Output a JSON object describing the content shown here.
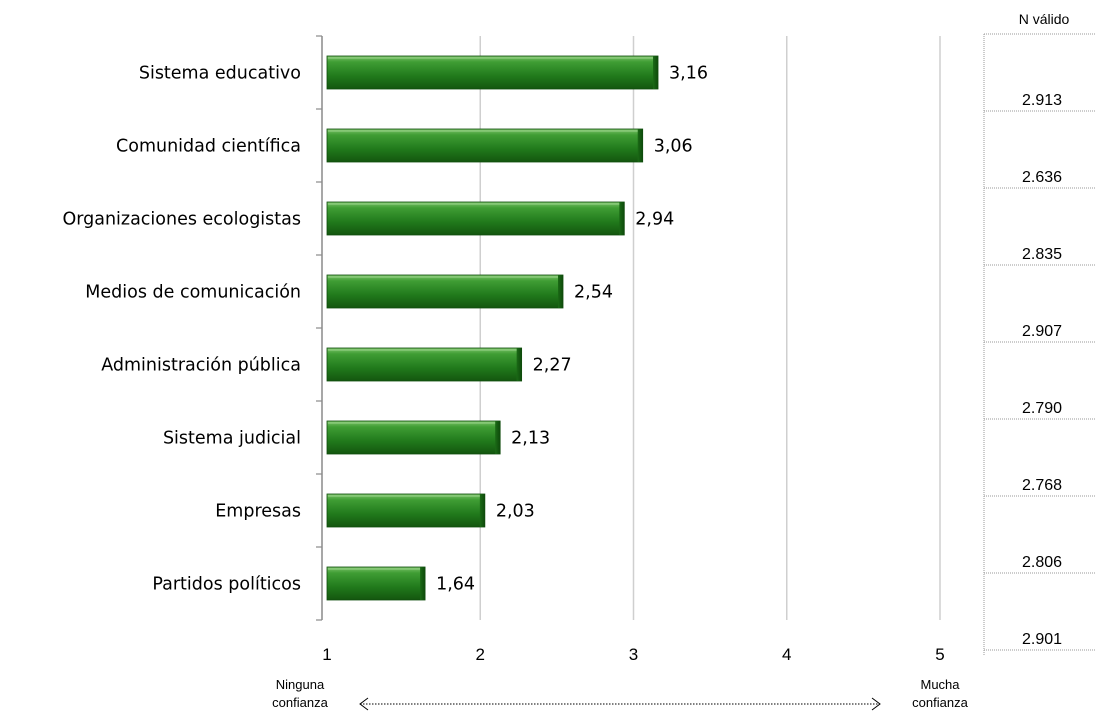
{
  "chart_data": {
    "type": "bar",
    "orientation": "horizontal",
    "categories": [
      "Sistema educativo",
      "Comunidad científica",
      "Organizaciones ecologistas",
      "Medios de comunicación",
      "Administración pública",
      "Sistema judicial",
      "Empresas",
      "Partidos políticos"
    ],
    "values": [
      3.16,
      3.06,
      2.94,
      2.54,
      2.27,
      2.13,
      2.03,
      1.64
    ],
    "value_labels": [
      "3,16",
      "3,06",
      "2,94",
      "2,54",
      "2,27",
      "2,13",
      "2,03",
      "1,64"
    ],
    "xlim": [
      1,
      5
    ],
    "x_ticks": [
      "1",
      "2",
      "3",
      "4",
      "5"
    ],
    "grid": "vertical",
    "bar_color": "#2a8a22",
    "scale_left_label": [
      "Ninguna",
      "confianza"
    ],
    "scale_right_label": [
      "Mucha",
      "confianza"
    ],
    "n_header": "N válido",
    "n_values": [
      "2.913",
      "2.636",
      "2.835",
      "2.907",
      "2.790",
      "2.768",
      "2.806",
      "2.901"
    ]
  }
}
